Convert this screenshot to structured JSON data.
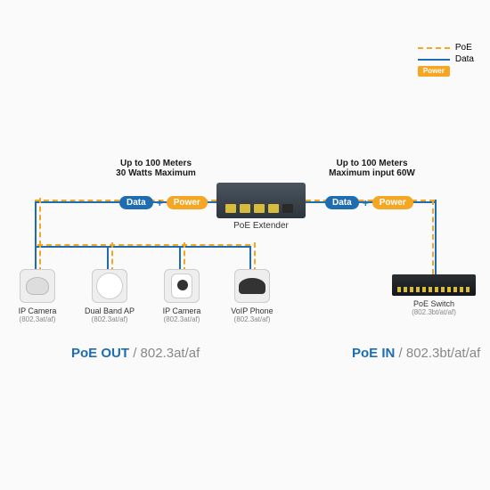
{
  "legend": {
    "poe": "PoE",
    "data": "Data",
    "power": "Power"
  },
  "colors": {
    "blue": "#1e6db3",
    "orange": "#f5a623",
    "device_grey": "#4a5560"
  },
  "specs": {
    "left_line1": "Up to 100 Meters",
    "left_line2": "30 Watts Maximum",
    "right_line1": "Up to 100 Meters",
    "right_line2": "Maximum input 60W"
  },
  "pills": {
    "data": "Data",
    "power": "Power"
  },
  "extender_label": "PoE Extender",
  "devices": [
    {
      "name": "IP Camera",
      "spec": "(802.3at/af)",
      "glyph": "dome"
    },
    {
      "name": "Dual Band AP",
      "spec": "(802.3at/af)",
      "glyph": "disk"
    },
    {
      "name": "IP Camera",
      "spec": "(802.3at/af)",
      "glyph": "cam"
    },
    {
      "name": "VoIP Phone",
      "spec": "(802.3at/af)",
      "glyph": "phone"
    }
  ],
  "switch": {
    "name": "PoE Switch",
    "spec": "(802.3bt/at/af)"
  },
  "sections": {
    "out_title": "PoE OUT",
    "out_spec": "802.3at/af",
    "in_title": "PoE IN",
    "in_spec": "802.3bt/at/af"
  }
}
